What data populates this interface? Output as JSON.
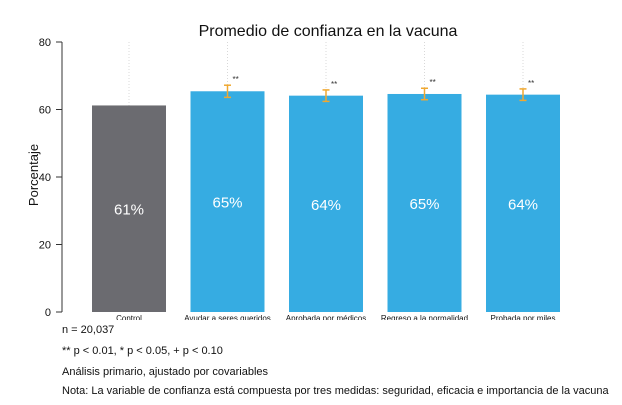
{
  "chart_data": {
    "type": "bar",
    "title": "Promedio de confianza en la vacuna",
    "ylabel": "Porcentaje",
    "xlabel": "",
    "ylim": [
      0,
      80
    ],
    "yticks": [
      "0",
      "20",
      "40",
      "60",
      "80"
    ],
    "yticks_values": [
      0,
      20,
      40,
      60,
      80
    ],
    "grid": false,
    "categories": [
      "Control",
      "Ayudar a seres queridos",
      "Aprobada por médicos",
      "Regreso a la normalidad",
      "Probada por miles"
    ],
    "values": [
      61.2,
      65.4,
      64.1,
      64.6,
      64.4
    ],
    "value_labels": [
      "61%",
      "65%",
      "64%",
      "65%",
      "64%"
    ],
    "ci_low": [
      null,
      63.6,
      62.4,
      62.9,
      62.7
    ],
    "ci_high": [
      null,
      67.2,
      65.8,
      66.3,
      66.1
    ],
    "significance": [
      "",
      "**",
      "**",
      "**",
      "**"
    ],
    "colors": [
      "#6b6b70",
      "#36ace2",
      "#36ace2",
      "#36ace2",
      "#36ace2"
    ],
    "errorbar_color": "#f0a830",
    "guide_color": "#d8d8d8"
  },
  "notes": [
    "n = 20,037",
    "** p < 0.01, * p < 0.05, + p < 0.10",
    "Análisis primario, ajustado por covariables",
    "Nota: La variable de confianza está compuesta por tres medidas: seguridad, eficacia e importancia de la vacuna con"
  ]
}
